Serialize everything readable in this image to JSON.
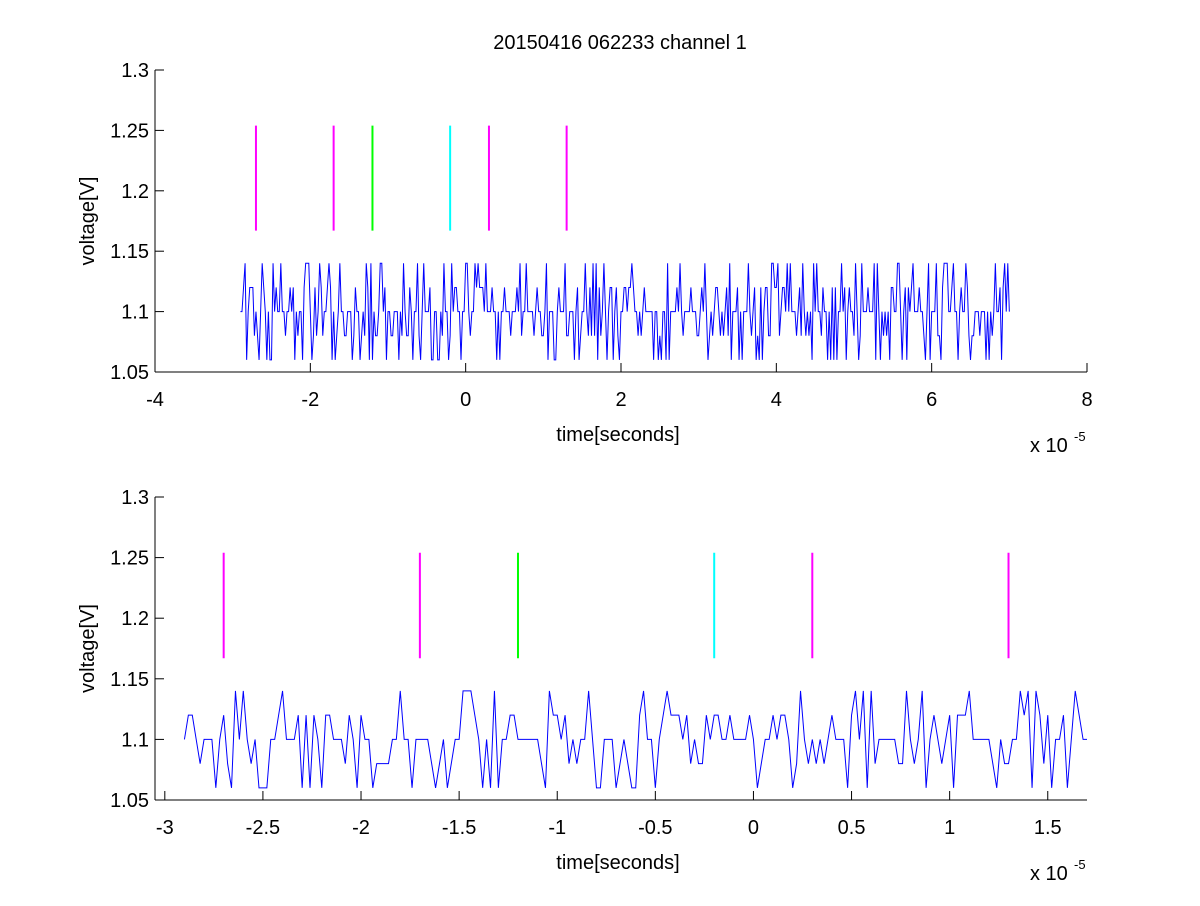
{
  "figure": {
    "title": "20150416 062233 channel 1",
    "background": "#ffffff"
  },
  "chart_data": [
    {
      "type": "line",
      "xlabel": "time[seconds]",
      "ylabel": "voltage[V]",
      "x_exponent_label": "x 10",
      "x_exponent": "-5",
      "xlim": [
        -4,
        8
      ],
      "ylim": [
        1.05,
        1.3
      ],
      "xticks": [
        -4,
        -2,
        0,
        2,
        4,
        6,
        8
      ],
      "xtick_labels": [
        "-4",
        "-2",
        "0",
        "2",
        "4",
        "6",
        "8"
      ],
      "yticks": [
        1.05,
        1.1,
        1.15,
        1.2,
        1.25,
        1.3
      ],
      "ytick_labels": [
        "1.05",
        "1.1",
        "1.15",
        "1.2",
        "1.25",
        "1.3"
      ],
      "grid": false,
      "series": [
        {
          "color": "#0000ff",
          "sampling": {
            "t_start": -2.9,
            "t_end": 7.0,
            "samples": 496,
            "baseline": 1.1
          },
          "levels": [
            1.06,
            1.08,
            1.1,
            1.12,
            1.14
          ],
          "note_values": "digitized noise trace alternating between the listed levels around the baseline"
        }
      ],
      "markers": [
        {
          "x": -2.7,
          "y0": 1.167,
          "y1": 1.254,
          "color": "#ff00ff"
        },
        {
          "x": -1.7,
          "y0": 1.167,
          "y1": 1.254,
          "color": "#ff00ff"
        },
        {
          "x": -1.2,
          "y0": 1.167,
          "y1": 1.254,
          "color": "#00ff00"
        },
        {
          "x": -0.2,
          "y0": 1.167,
          "y1": 1.254,
          "color": "#00ffff"
        },
        {
          "x": 0.3,
          "y0": 1.167,
          "y1": 1.254,
          "color": "#ff00ff"
        },
        {
          "x": 1.3,
          "y0": 1.167,
          "y1": 1.254,
          "color": "#ff00ff"
        }
      ]
    },
    {
      "type": "line",
      "xlabel": "time[seconds]",
      "ylabel": "voltage[V]",
      "x_exponent_label": "x 10",
      "x_exponent": "-5",
      "xlim": [
        -3.05,
        1.7
      ],
      "ylim": [
        1.05,
        1.3
      ],
      "xticks": [
        -3,
        -2.5,
        -2,
        -1.5,
        -1,
        -0.5,
        0,
        0.5,
        1,
        1.5
      ],
      "xtick_labels": [
        "-3",
        "-2.5",
        "-2",
        "-1.5",
        "-1",
        "-0.5",
        "0",
        "0.5",
        "1",
        "1.5"
      ],
      "yticks": [
        1.05,
        1.1,
        1.15,
        1.2,
        1.25,
        1.3
      ],
      "ytick_labels": [
        "1.05",
        "1.1",
        "1.15",
        "1.2",
        "1.25",
        "1.3"
      ],
      "grid": false,
      "series": [
        {
          "color": "#0000ff",
          "sampling": {
            "t_start": -2.9,
            "t_end": 1.7,
            "samples": 231,
            "baseline": 1.1
          },
          "levels": [
            1.06,
            1.08,
            1.1,
            1.12,
            1.14
          ]
        }
      ],
      "markers": [
        {
          "x": -2.7,
          "y0": 1.167,
          "y1": 1.254,
          "color": "#ff00ff"
        },
        {
          "x": -1.7,
          "y0": 1.167,
          "y1": 1.254,
          "color": "#ff00ff"
        },
        {
          "x": -1.2,
          "y0": 1.167,
          "y1": 1.254,
          "color": "#00ff00"
        },
        {
          "x": -0.2,
          "y0": 1.167,
          "y1": 1.254,
          "color": "#00ffff"
        },
        {
          "x": 0.3,
          "y0": 1.167,
          "y1": 1.254,
          "color": "#ff00ff"
        },
        {
          "x": 1.3,
          "y0": 1.167,
          "y1": 1.254,
          "color": "#ff00ff"
        }
      ]
    }
  ]
}
